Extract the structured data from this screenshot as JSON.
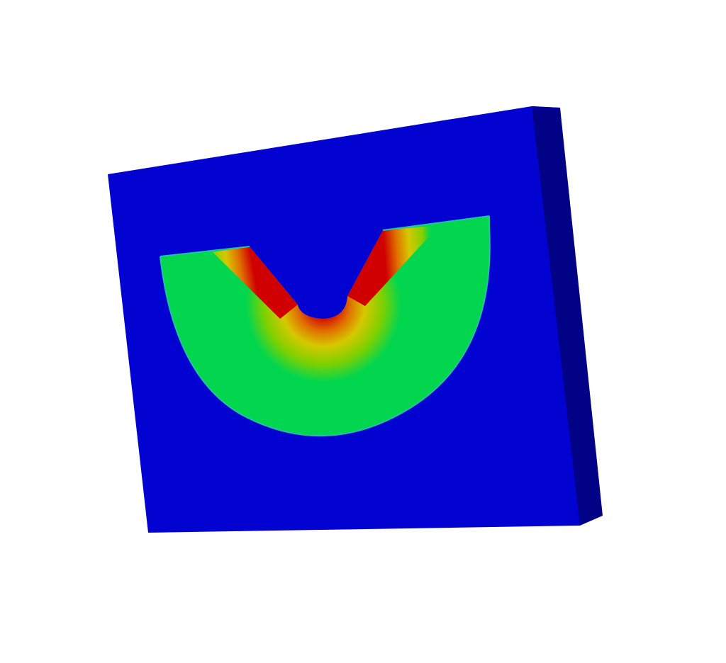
{
  "render": {
    "background_color": "#ffffff",
    "plate_front_color": "#0202d1",
    "plate_side_color": "#020286",
    "plate_top_color": "#02029a",
    "field_low_color": "#02d64e",
    "field_edge_color": "#1fc6a0",
    "field_mid_color": "#d6c800",
    "field_high_color": "#d00000",
    "gradient_stops": [
      "#02d64e",
      "#7fd000",
      "#d6c800",
      "#e07000",
      "#d00000"
    ]
  }
}
